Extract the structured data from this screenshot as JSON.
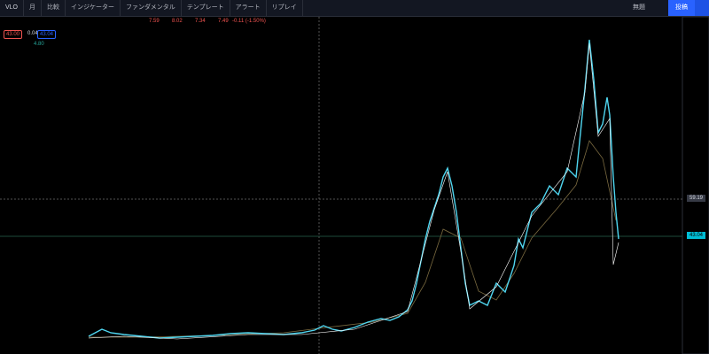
{
  "toolbar": {
    "symbol": "VLO",
    "interval": "月",
    "compare": "比較",
    "indicators": "インジケーター",
    "fundamentals": "ファンダメンタル",
    "templates": "テンプレート",
    "alerts": "アラート",
    "replay": "リプレイ",
    "layout_name": "無題",
    "publish": "投稿"
  },
  "legend": {
    "open": "7.59",
    "high": "8.02",
    "low": "7.34",
    "close": "7.49",
    "change": "-0.11 (-1.50%)"
  },
  "order_panel": {
    "sell": "43.00",
    "spread": "0.04",
    "buy": "43.04",
    "volume": "4.80"
  },
  "price_scale": {
    "crosshair": "59.19",
    "last": "43.04"
  }
}
